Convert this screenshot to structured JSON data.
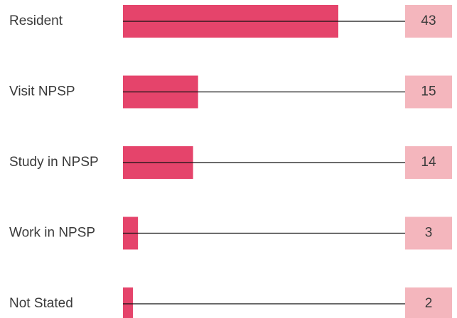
{
  "chart_data": {
    "type": "bar",
    "orientation": "horizontal",
    "categories": [
      "Resident",
      "Visit NPSP",
      "Study in NPSP",
      "Work in NPSP",
      "Not Stated"
    ],
    "values": [
      43,
      15,
      14,
      3,
      2
    ],
    "color": "#e5446b",
    "label_box_color": "#f4b6bd"
  }
}
